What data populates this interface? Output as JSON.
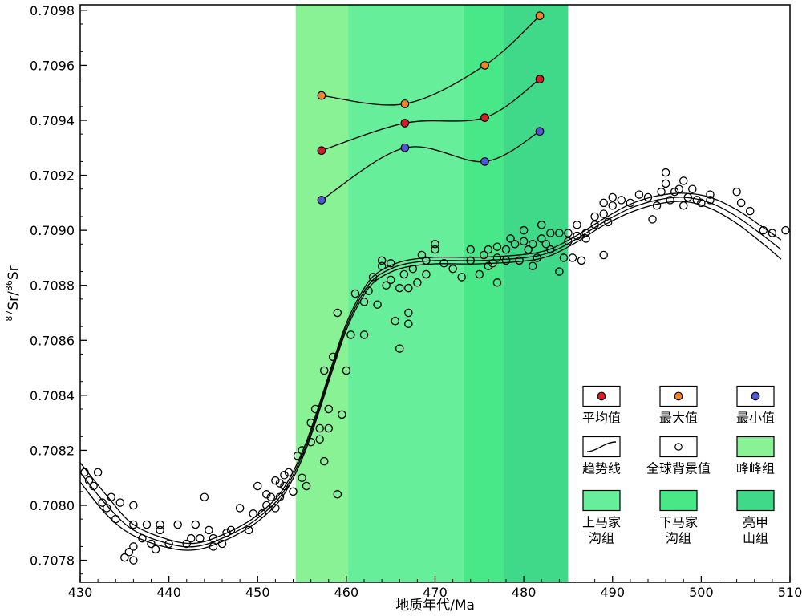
{
  "chart_data": {
    "type": "scatter",
    "title": "",
    "xlabel": "地质年代/Ma",
    "ylabel": {
      "sup1": "87",
      "main1": "Sr/",
      "sup2": "86",
      "main2": "Sr"
    },
    "xlim": [
      430,
      510
    ],
    "ylim": [
      0.70772,
      0.70982
    ],
    "x_ticks": [
      430,
      440,
      450,
      460,
      470,
      480,
      490,
      500,
      510
    ],
    "y_ticks": [
      "0.7078",
      "0.7080",
      "0.7082",
      "0.7084",
      "0.7086",
      "0.7088",
      "0.7090",
      "0.7092",
      "0.7094",
      "0.7096",
      "0.7098"
    ],
    "bands": [
      {
        "name": "峰峰组",
        "x0": 454.3,
        "x1": 460.2,
        "color": "#88f294"
      },
      {
        "name": "上马家沟组",
        "x0": 460.2,
        "x1": 473.2,
        "color": "#66ee9a"
      },
      {
        "name": "下马家沟组",
        "x0": 473.2,
        "x1": 477.8,
        "color": "#48e888"
      },
      {
        "name": "亮甲山组",
        "x0": 477.8,
        "x1": 485.0,
        "color": "#40d98a"
      }
    ],
    "series": [
      {
        "name": "最大值",
        "color": "#f0822a",
        "x": [
          457.2,
          466.6,
          475.6,
          481.8
        ],
        "y": [
          0.70949,
          0.70946,
          0.7096,
          0.70978
        ]
      },
      {
        "name": "平均值",
        "color": "#d41f25",
        "x": [
          457.2,
          466.6,
          475.6,
          481.8
        ],
        "y": [
          0.70929,
          0.70939,
          0.70941,
          0.70955
        ]
      },
      {
        "name": "最小值",
        "color": "#4b57d8",
        "x": [
          457.2,
          466.6,
          475.6,
          481.8
        ],
        "y": [
          0.70911,
          0.7093,
          0.70925,
          0.70936
        ]
      }
    ],
    "trend": {
      "name": "趋势线",
      "center": [
        [
          430,
          0.70812
        ],
        [
          433,
          0.708
        ],
        [
          436,
          0.70791
        ],
        [
          440,
          0.70786
        ],
        [
          443,
          0.70785
        ],
        [
          446,
          0.70788
        ],
        [
          449,
          0.70793
        ],
        [
          451,
          0.70798
        ],
        [
          452.5,
          0.70803
        ],
        [
          454,
          0.70811
        ],
        [
          455.5,
          0.70822
        ],
        [
          457,
          0.70836
        ],
        [
          458.5,
          0.70851
        ],
        [
          460,
          0.70865
        ],
        [
          461.5,
          0.70875
        ],
        [
          463,
          0.70882
        ],
        [
          465,
          0.70886
        ],
        [
          467,
          0.70888
        ],
        [
          470,
          0.70889
        ],
        [
          475,
          0.70889
        ],
        [
          480,
          0.7089
        ],
        [
          483,
          0.70892
        ],
        [
          486,
          0.70897
        ],
        [
          489,
          0.70903
        ],
        [
          492,
          0.70908
        ],
        [
          495,
          0.70911
        ],
        [
          498,
          0.70912
        ],
        [
          501,
          0.7091
        ],
        [
          504,
          0.70905
        ],
        [
          507,
          0.70898
        ],
        [
          509,
          0.70893
        ]
      ],
      "offset": [
        3.5e-05,
        3.5e-05,
        2e-05,
        1.5e-05,
        1.2e-05,
        1.2e-05,
        1.2e-05,
        1.2e-05,
        1.2e-05,
        1.2e-05,
        1.2e-05,
        1.2e-05,
        1.2e-05,
        1.2e-05,
        1.2e-05,
        1.2e-05,
        1.2e-05,
        1.2e-05,
        1.2e-05,
        1.2e-05,
        1.2e-05,
        1.2e-05,
        1.2e-05,
        1.2e-05,
        1.5e-05,
        1.5e-05,
        1.5e-05,
        2e-05,
        2.5e-05,
        3e-05,
        3.5e-05
      ]
    },
    "background_points": {
      "name": "全球背景值",
      "points": [
        [
          430.5,
          0.70812
        ],
        [
          431,
          0.70809
        ],
        [
          431.5,
          0.70807
        ],
        [
          432,
          0.70812
        ],
        [
          432.5,
          0.70801
        ],
        [
          433,
          0.70799
        ],
        [
          433.5,
          0.70803
        ],
        [
          434,
          0.70795
        ],
        [
          434.5,
          0.70801
        ],
        [
          435,
          0.70781
        ],
        [
          435.5,
          0.70783
        ],
        [
          436,
          0.7078
        ],
        [
          436,
          0.70785
        ],
        [
          436,
          0.70793
        ],
        [
          436,
          0.708
        ],
        [
          437,
          0.70788
        ],
        [
          437.5,
          0.70793
        ],
        [
          438,
          0.70786
        ],
        [
          438.5,
          0.70784
        ],
        [
          439,
          0.70791
        ],
        [
          439,
          0.70793
        ],
        [
          440,
          0.70786
        ],
        [
          441,
          0.70793
        ],
        [
          442,
          0.70786
        ],
        [
          442.5,
          0.70788
        ],
        [
          443,
          0.70793
        ],
        [
          443.5,
          0.70788
        ],
        [
          444,
          0.70803
        ],
        [
          444.5,
          0.70791
        ],
        [
          445,
          0.70788
        ],
        [
          445,
          0.70785
        ],
        [
          446,
          0.70786
        ],
        [
          446.5,
          0.7079
        ],
        [
          447,
          0.70791
        ],
        [
          448,
          0.70799
        ],
        [
          449,
          0.70791
        ],
        [
          449.5,
          0.70797
        ],
        [
          450,
          0.70807
        ],
        [
          450.5,
          0.70797
        ],
        [
          451,
          0.708
        ],
        [
          451,
          0.70804
        ],
        [
          451.5,
          0.70803
        ],
        [
          452,
          0.70799
        ],
        [
          452,
          0.70809
        ],
        [
          452.5,
          0.70808
        ],
        [
          452.5,
          0.70803
        ],
        [
          453,
          0.70807
        ],
        [
          453,
          0.70811
        ],
        [
          453.5,
          0.70812
        ],
        [
          454,
          0.70805
        ],
        [
          454.5,
          0.70818
        ],
        [
          455,
          0.7082
        ],
        [
          455,
          0.7081
        ],
        [
          455.5,
          0.70807
        ],
        [
          456,
          0.70823
        ],
        [
          456,
          0.7083
        ],
        [
          456.5,
          0.70835
        ],
        [
          457,
          0.70824
        ],
        [
          457,
          0.70828
        ],
        [
          457.5,
          0.70816
        ],
        [
          457.5,
          0.70849
        ],
        [
          458,
          0.70828
        ],
        [
          458,
          0.70835
        ],
        [
          458.5,
          0.70854
        ],
        [
          459,
          0.7087
        ],
        [
          459,
          0.70804
        ],
        [
          459.5,
          0.70833
        ],
        [
          460,
          0.70849
        ],
        [
          460.5,
          0.70862
        ],
        [
          461,
          0.70877
        ],
        [
          462,
          0.70874
        ],
        [
          462,
          0.70862
        ],
        [
          462.5,
          0.70878
        ],
        [
          463,
          0.70883
        ],
        [
          463.5,
          0.70873
        ],
        [
          464,
          0.70887
        ],
        [
          464,
          0.70889
        ],
        [
          464.5,
          0.7088
        ],
        [
          465,
          0.70888
        ],
        [
          465,
          0.70882
        ],
        [
          465.5,
          0.70867
        ],
        [
          466,
          0.70857
        ],
        [
          466,
          0.70879
        ],
        [
          466.5,
          0.70884
        ],
        [
          467,
          0.70879
        ],
        [
          467,
          0.7087
        ],
        [
          467,
          0.70866
        ],
        [
          467.5,
          0.70886
        ],
        [
          468,
          0.70881
        ],
        [
          468.5,
          0.70891
        ],
        [
          469,
          0.70884
        ],
        [
          469,
          0.70889
        ],
        [
          470,
          0.70895
        ],
        [
          470,
          0.70893
        ],
        [
          471,
          0.70888
        ],
        [
          472,
          0.70886
        ],
        [
          473,
          0.70883
        ],
        [
          474,
          0.70889
        ],
        [
          474,
          0.70893
        ],
        [
          475,
          0.70884
        ],
        [
          475.5,
          0.70891
        ],
        [
          476,
          0.70893
        ],
        [
          476,
          0.70887
        ],
        [
          476.5,
          0.70888
        ],
        [
          477,
          0.7089
        ],
        [
          477,
          0.70894
        ],
        [
          477,
          0.70881
        ],
        [
          478,
          0.70893
        ],
        [
          478,
          0.70889
        ],
        [
          478.5,
          0.70897
        ],
        [
          479,
          0.70895
        ],
        [
          479.5,
          0.70889
        ],
        [
          480,
          0.70896
        ],
        [
          480,
          0.709
        ],
        [
          480.5,
          0.70893
        ],
        [
          481,
          0.70895
        ],
        [
          481,
          0.70887
        ],
        [
          481.5,
          0.7089
        ],
        [
          482,
          0.70897
        ],
        [
          482,
          0.70902
        ],
        [
          482.5,
          0.70895
        ],
        [
          483,
          0.70893
        ],
        [
          483,
          0.70899
        ],
        [
          484,
          0.70899
        ],
        [
          484,
          0.70885
        ],
        [
          484.5,
          0.7089
        ],
        [
          485,
          0.70896
        ],
        [
          485,
          0.70899
        ],
        [
          485.5,
          0.7089
        ],
        [
          486,
          0.70898
        ],
        [
          486,
          0.70902
        ],
        [
          486.5,
          0.70889
        ],
        [
          487,
          0.70897
        ],
        [
          487,
          0.70899
        ],
        [
          488,
          0.70902
        ],
        [
          488,
          0.70905
        ],
        [
          489,
          0.70906
        ],
        [
          489,
          0.7091
        ],
        [
          489,
          0.70891
        ],
        [
          489.5,
          0.70903
        ],
        [
          490,
          0.70909
        ],
        [
          490,
          0.70912
        ],
        [
          491,
          0.70911
        ],
        [
          492,
          0.7091
        ],
        [
          493,
          0.70913
        ],
        [
          494,
          0.70912
        ],
        [
          494.5,
          0.70904
        ],
        [
          495,
          0.70909
        ],
        [
          495.5,
          0.70914
        ],
        [
          496,
          0.70917
        ],
        [
          496,
          0.70921
        ],
        [
          496.5,
          0.70911
        ],
        [
          497,
          0.70914
        ],
        [
          497.5,
          0.70915
        ],
        [
          498,
          0.70918
        ],
        [
          498,
          0.70909
        ],
        [
          498.5,
          0.70912
        ],
        [
          499,
          0.70915
        ],
        [
          499.5,
          0.70911
        ],
        [
          500,
          0.7091
        ],
        [
          501,
          0.70913
        ],
        [
          501,
          0.70911
        ],
        [
          504,
          0.70914
        ],
        [
          504.5,
          0.7091
        ],
        [
          505.5,
          0.70907
        ],
        [
          507,
          0.709
        ],
        [
          508,
          0.70899
        ],
        [
          509.5,
          0.709
        ]
      ]
    },
    "legend": {
      "placement": "bottom-right",
      "rows": [
        [
          {
            "label": "平均值",
            "swatch": "dot",
            "color": "#d41f25"
          },
          {
            "label": "最大值",
            "swatch": "dot",
            "color": "#f0822a"
          },
          {
            "label": "最小值",
            "swatch": "dot",
            "color": "#4b57d8"
          }
        ],
        [
          {
            "label": "趋势线",
            "swatch": "line",
            "color": "#000000"
          },
          {
            "label": "全球背景值",
            "swatch": "ring",
            "color": "#000000"
          },
          {
            "label": "峰峰组",
            "swatch": "fill",
            "color": "#88f294"
          }
        ],
        [
          {
            "label": "上马家\n沟组",
            "swatch": "fill",
            "color": "#66ee9a"
          },
          {
            "label": "下马家\n沟组",
            "swatch": "fill",
            "color": "#48e888"
          },
          {
            "label": "亮甲\n山组",
            "swatch": "fill",
            "color": "#40d98a"
          }
        ]
      ]
    }
  }
}
